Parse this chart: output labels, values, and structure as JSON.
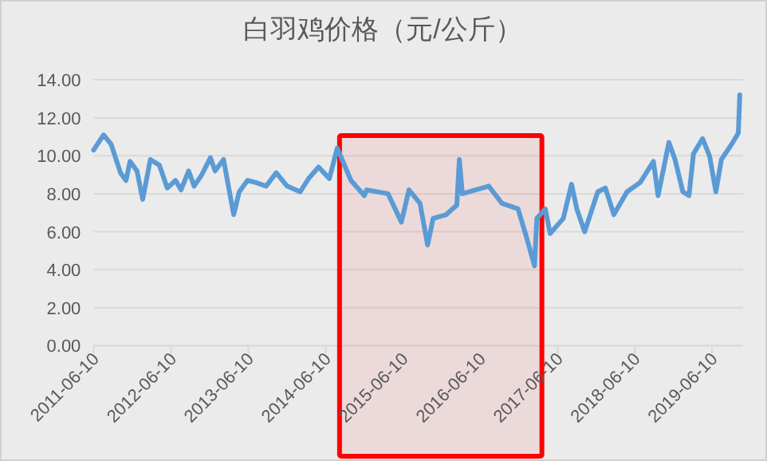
{
  "chart_data": {
    "type": "line",
    "title": "白羽鸡价格（元/公斤）",
    "x": [
      "2011-06-10",
      "2011-07-27",
      "2011-09-01",
      "2011-10-15",
      "2011-11-10",
      "2011-11-29",
      "2012-01-01",
      "2012-01-28",
      "2012-03-04",
      "2012-04-16",
      "2012-05-23",
      "2012-07-01",
      "2012-07-27",
      "2012-09-01",
      "2012-09-27",
      "2012-11-02",
      "2012-12-13",
      "2013-01-04",
      "2013-02-13",
      "2013-03-08",
      "2013-04-02",
      "2013-04-28",
      "2013-06-06",
      "2013-07-13",
      "2013-09-02",
      "2013-10-20",
      "2013-12-10",
      "2014-02-10",
      "2014-03-22",
      "2014-05-08",
      "2014-06-28",
      "2014-08-04",
      "2014-10-08",
      "2014-12-10",
      "2014-12-21",
      "2015-04-01",
      "2015-06-03",
      "2015-07-09",
      "2015-08-30",
      "2015-10-05",
      "2015-10-31",
      "2016-01-01",
      "2016-02-20",
      "2016-03-03",
      "2016-03-17",
      "2016-07-20",
      "2016-09-20",
      "2016-12-05",
      "2017-01-12",
      "2017-02-21",
      "2017-03-04",
      "2017-04-13",
      "2017-05-06",
      "2017-07-07",
      "2017-08-15",
      "2017-09-09",
      "2017-10-16",
      "2017-12-17",
      "2018-01-22",
      "2018-03-03",
      "2018-05-04",
      "2018-07-06",
      "2018-09-06",
      "2018-09-28",
      "2018-11-18",
      "2018-12-17",
      "2019-01-23",
      "2019-02-21",
      "2019-03-14",
      "2019-04-26",
      "2019-05-29",
      "2019-06-28",
      "2019-07-24",
      "2019-09-16",
      "2019-10-12",
      "2019-10-19"
    ],
    "series": [
      {
        "color": "#5b9bd5",
        "values": [
          10.3,
          11.1,
          10.6,
          9.1,
          8.7,
          9.7,
          9.2,
          7.7,
          9.8,
          9.5,
          8.3,
          8.7,
          8.2,
          9.2,
          8.4,
          9.0,
          9.9,
          9.2,
          9.8,
          8.4,
          6.9,
          8.1,
          8.7,
          8.6,
          8.4,
          9.1,
          8.4,
          8.1,
          8.8,
          9.4,
          8.8,
          10.4,
          8.7,
          7.9,
          8.2,
          8.0,
          6.5,
          8.2,
          7.5,
          5.3,
          6.7,
          6.9,
          7.4,
          9.8,
          8.0,
          8.4,
          7.5,
          7.2,
          5.8,
          4.2,
          6.7,
          7.2,
          5.9,
          6.7,
          8.5,
          7.2,
          6.0,
          8.1,
          8.3,
          6.9,
          8.1,
          8.6,
          9.7,
          7.9,
          10.7,
          9.8,
          8.1,
          7.9,
          10.1,
          10.9,
          10.0,
          8.1,
          9.8,
          10.7,
          11.2,
          13.2
        ]
      }
    ],
    "xlim": [
      "2011-06-10",
      "2019-10-27"
    ],
    "xticks": [
      "2011-06-10",
      "2012-06-10",
      "2013-06-10",
      "2014-06-10",
      "2015-06-10",
      "2016-06-10",
      "2017-06-10",
      "2018-06-10",
      "2019-06-10"
    ],
    "ylim": [
      0,
      14
    ],
    "yticks": [
      {
        "value": 0,
        "label": "0.00"
      },
      {
        "value": 2,
        "label": "2.00"
      },
      {
        "value": 4,
        "label": "4.00"
      },
      {
        "value": 6,
        "label": "6.00"
      },
      {
        "value": 8,
        "label": "8.00"
      },
      {
        "value": 10,
        "label": "10.00"
      },
      {
        "value": 12,
        "label": "12.00"
      },
      {
        "value": 14,
        "label": "14.00"
      }
    ],
    "grid": "y",
    "bands": [
      {
        "axis": "x",
        "from": "2014-08-15",
        "to": "2017-03-28",
        "color": "#ff0000"
      }
    ]
  }
}
